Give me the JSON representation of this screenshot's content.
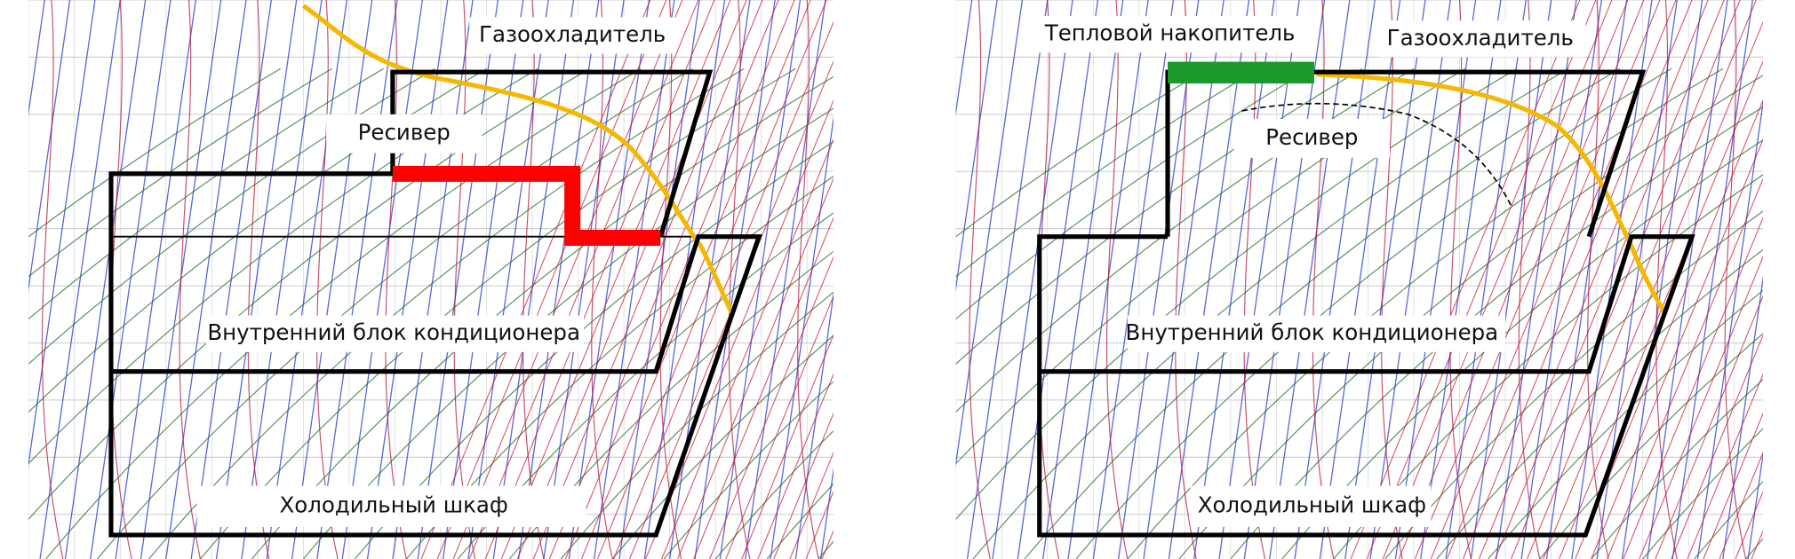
{
  "panels": [
    {
      "gas_cooler": "Газоохладитель",
      "receiver": "Ресивер",
      "indoor_unit": "Внутренний блок кондиционера",
      "cabinet": "Холодильный шкаф"
    },
    {
      "heat_storage": "Тепловой накопитель",
      "gas_cooler": "Газоохладитель",
      "receiver": "Ресивер",
      "indoor_unit": "Внутренний блок кондиционера",
      "cabinet": "Холодильный шкаф"
    }
  ]
}
